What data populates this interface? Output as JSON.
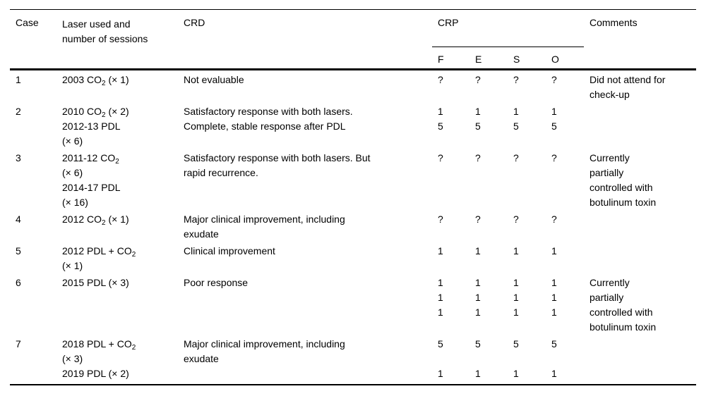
{
  "table": {
    "header": {
      "case": "Case",
      "laser_lines": [
        "Laser used and",
        "number of sessions"
      ],
      "crd": "CRD",
      "crp": "CRP",
      "crp_sub": [
        "F",
        "E",
        "S",
        "O"
      ],
      "comments": "Comments"
    },
    "rows": [
      {
        "case": "1",
        "laser": [
          "2003 CO₂ (× 1)"
        ],
        "crd": [
          "Not evaluable"
        ],
        "crp": [
          [
            "?",
            "?",
            "?",
            "?"
          ]
        ],
        "comments": [
          "Did not attend for",
          "check-up"
        ]
      },
      {
        "case": "2",
        "laser": [
          "2010 CO₂ (× 2)",
          "2012-13 PDL",
          "(× 6)"
        ],
        "crd": [
          "Satisfactory response with both lasers.",
          "Complete, stable response after PDL"
        ],
        "crp": [
          [
            "1",
            "1",
            "1",
            "1"
          ],
          [
            "5",
            "5",
            "5",
            "5"
          ]
        ],
        "comments": []
      },
      {
        "case": "3",
        "laser": [
          "2011-12 CO₂",
          "(× 6)",
          "2014-17 PDL",
          "(× 16)"
        ],
        "crd": [
          "Satisfactory response with both lasers. But",
          "rapid recurrence."
        ],
        "crp": [
          [
            "?",
            "?",
            "?",
            "?"
          ]
        ],
        "comments": [
          "Currently",
          "partially",
          "controlled with",
          "botulinum toxin"
        ]
      },
      {
        "case": "4",
        "laser": [
          "2012 CO₂ (× 1)"
        ],
        "crd": [
          "Major clinical improvement, including",
          "exudate"
        ],
        "crp": [
          [
            "?",
            "?",
            "?",
            "?"
          ]
        ],
        "comments": []
      },
      {
        "case": "5",
        "laser": [
          "2012 PDL + CO₂",
          "(× 1)"
        ],
        "crd": [
          "Clinical improvement"
        ],
        "crp": [
          [
            "1",
            "1",
            "1",
            "1"
          ]
        ],
        "comments": []
      },
      {
        "case": "6",
        "laser": [
          "2015 PDL (× 3)"
        ],
        "crd": [
          "Poor response"
        ],
        "crp": [
          [
            "1",
            "1",
            "1",
            "1"
          ],
          [
            "1",
            "1",
            "1",
            "1"
          ],
          [
            "1",
            "1",
            "1",
            "1"
          ]
        ],
        "comments": [
          "Currently",
          "partially",
          "controlled with",
          "botulinum toxin"
        ]
      },
      {
        "case": "7",
        "laser": [
          "2018 PDL + CO₂",
          "(× 3)",
          "2019 PDL (× 2)"
        ],
        "crd": [
          "Major clinical improvement, including",
          "exudate"
        ],
        "crp": [
          [
            "5",
            "5",
            "5",
            "5"
          ],
          [
            "",
            "",
            "",
            ""
          ],
          [
            "1",
            "1",
            "1",
            "1"
          ]
        ],
        "comments": []
      }
    ]
  }
}
